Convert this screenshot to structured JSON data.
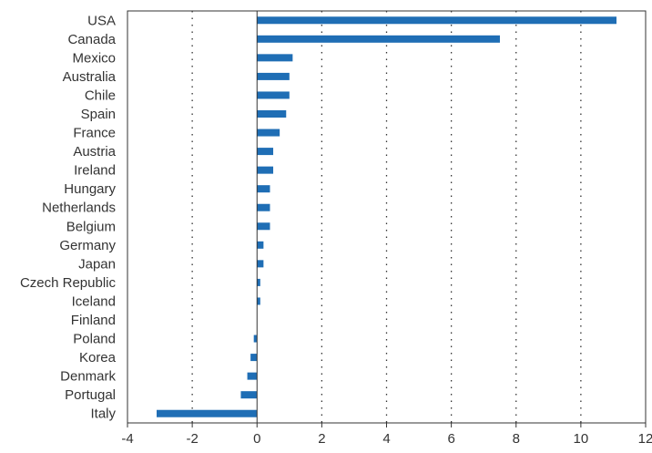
{
  "chart_data": {
    "type": "bar",
    "orientation": "horizontal",
    "title": "",
    "xlabel": "",
    "ylabel": "",
    "categories": [
      "USA",
      "Canada",
      "Mexico",
      "Australia",
      "Chile",
      "Spain",
      "France",
      "Austria",
      "Ireland",
      "Hungary",
      "Netherlands",
      "Belgium",
      "Germany",
      "Japan",
      "Czech Republic",
      "Iceland",
      "Finland",
      "Poland",
      "Korea",
      "Denmark",
      "Portugal",
      "Italy"
    ],
    "values": [
      11.1,
      7.5,
      1.1,
      1.0,
      1.0,
      0.9,
      0.7,
      0.5,
      0.5,
      0.4,
      0.4,
      0.4,
      0.2,
      0.2,
      0.1,
      0.1,
      0.0,
      -0.1,
      -0.2,
      -0.3,
      -0.5,
      -3.1
    ],
    "xlim": [
      -4,
      12
    ],
    "xticks": [
      "-4",
      "-2",
      "0",
      "2",
      "4",
      "6",
      "8",
      "10",
      "12"
    ],
    "xtick_values": [
      -4,
      -2,
      0,
      2,
      4,
      6,
      8,
      10,
      12
    ],
    "grid": "vertical-dotted",
    "legend": "none",
    "colors": {
      "bar": "#1f6eb5",
      "axis": "#333333",
      "grid": "#333333",
      "text": "#333333"
    }
  }
}
